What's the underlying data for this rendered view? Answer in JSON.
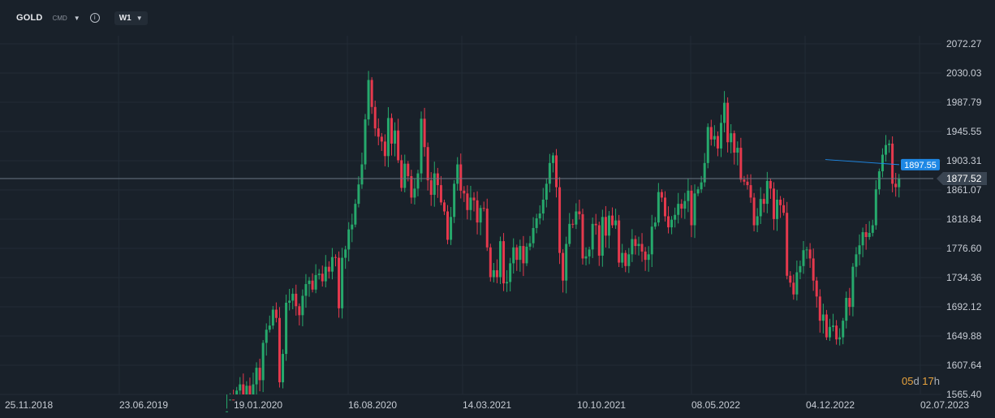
{
  "toolbar": {
    "symbol": "GOLD",
    "asset_class": "CMD",
    "info_icon": "info-icon",
    "timeframe": "W1"
  },
  "countdown": {
    "days": "05",
    "days_unit": "d",
    "hours": "17",
    "hours_unit": "h"
  },
  "colors": {
    "up": "#26a96c",
    "down": "#e5394d",
    "grid": "#222c36",
    "current_label": "#1e88e5",
    "price_tag": "#3a4552"
  },
  "chart_data": {
    "type": "candlestick",
    "title": "",
    "xlabel": "",
    "ylabel": "",
    "ylim": [
      1565.4,
      2093.39
    ],
    "grid": true,
    "y_ticks": [
      2072.27,
      2030.03,
      1987.79,
      1945.55,
      1903.31,
      1861.07,
      1818.84,
      1776.6,
      1734.36,
      1692.12,
      1649.88,
      1607.64,
      1565.4
    ],
    "x_ticks": [
      "25.11.2018",
      "23.06.2019",
      "19.01.2020",
      "16.08.2020",
      "14.03.2021",
      "10.10.2021",
      "08.05.2022",
      "04.12.2022",
      "02.07.2023"
    ],
    "current_price": 1877.52,
    "marked_price": 1897.55,
    "close_weekly": [
      1541,
      1558,
      1552,
      1571,
      1580,
      1552,
      1578,
      1565,
      1580,
      1604,
      1586,
      1640,
      1659,
      1665,
      1688,
      1676,
      1583,
      1624,
      1698,
      1701,
      1711,
      1693,
      1680,
      1708,
      1725,
      1730,
      1717,
      1738,
      1740,
      1729,
      1750,
      1743,
      1764,
      1763,
      1690,
      1763,
      1775,
      1804,
      1811,
      1841,
      1869,
      1898,
      1963,
      2020,
      1981,
      1950,
      1938,
      1931,
      1910,
      1965,
      1928,
      1947,
      1904,
      1864,
      1899,
      1881,
      1850,
      1863,
      1885,
      1964,
      1923,
      1875,
      1854,
      1885,
      1868,
      1843,
      1830,
      1789,
      1822,
      1870,
      1898,
      1860,
      1856,
      1832,
      1850,
      1846,
      1814,
      1835,
      1834,
      1778,
      1735,
      1745,
      1735,
      1787,
      1726,
      1728,
      1755,
      1778,
      1760,
      1780,
      1755,
      1779,
      1784,
      1806,
      1820,
      1827,
      1847,
      1870,
      1900,
      1911,
      1865,
      1770,
      1730,
      1783,
      1812,
      1811,
      1830,
      1826,
      1762,
      1765,
      1775,
      1812,
      1810,
      1766,
      1822,
      1795,
      1824,
      1810,
      1817,
      1756,
      1770,
      1751,
      1768,
      1790,
      1780,
      1783,
      1772,
      1760,
      1768,
      1808,
      1814,
      1858,
      1850,
      1823,
      1807,
      1818,
      1825,
      1841,
      1834,
      1845,
      1860,
      1810,
      1856,
      1862,
      1872,
      1900,
      1952,
      1934,
      1939,
      1921,
      1958,
      1987,
      1930,
      1943,
      1915,
      1922,
      1876,
      1873,
      1868,
      1850,
      1810,
      1823,
      1848,
      1841,
      1874,
      1863,
      1819,
      1847,
      1839,
      1828,
      1737,
      1727,
      1710,
      1742,
      1751,
      1774,
      1775,
      1762,
      1730,
      1707,
      1672,
      1681,
      1648,
      1663,
      1665,
      1645,
      1648,
      1672,
      1705,
      1692,
      1750,
      1768,
      1781,
      1800,
      1793,
      1799,
      1810,
      1862,
      1888,
      1912,
      1926,
      1928,
      1870,
      1865,
      1877.52
    ]
  }
}
